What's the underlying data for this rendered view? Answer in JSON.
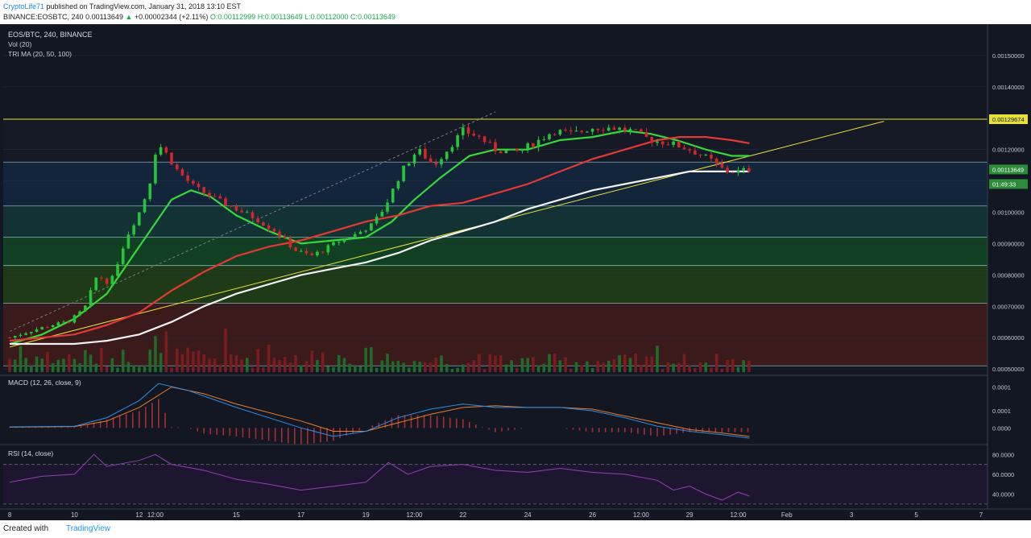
{
  "header": {
    "author": "CryptoLife71",
    "published": "published on TradingView.com, January 31, 2018 13:10 EST",
    "symbol": "BINANCE:EOSBTC, 240",
    "price": "0.00113649",
    "change": "+0.00002344 (+2.11%)",
    "ohlc": "O:0.00112999 H:0.00113649 L:0.00112000 C:0.00113649"
  },
  "legend": {
    "main": "EOS/BTC, 240, BINANCE",
    "vol": "Vol (20)",
    "trima": "TRI MA (20, 50, 100)"
  },
  "colors": {
    "background": "#131722",
    "grid": "#1f2433",
    "up": "#26c53a",
    "down": "#d5262c",
    "ma_fast": "#34d93a",
    "ma_mid": "#e53935",
    "ma_slow": "#f2f2f2",
    "trendline": "#e8e03a",
    "hline": "#e8e03a",
    "zone_line": "#9fd7d9",
    "macd": "#2b8ce8",
    "signal": "#f07b2a",
    "rsi": "#8e44ad"
  },
  "price_axis": {
    "labels": [
      "0.00150000",
      "0.00140000",
      "0.00129674",
      "0.00120000",
      "0.00113649",
      "01:49:33",
      "0.00100000",
      "0.00090000",
      "0.00080000",
      "0.00070000",
      "0.00060000",
      "0.00050000"
    ]
  },
  "time_axis": {
    "labels": [
      "8",
      "10",
      "12",
      "12:00",
      "15",
      "17",
      "19",
      "12:00",
      "22",
      "24",
      "26",
      "12:00",
      "29",
      "12:00",
      "Feb",
      "3",
      "5",
      "7"
    ]
  },
  "macd": {
    "title": "MACD (12, 26, close, 9)",
    "axis": [
      "0.0001",
      "0.0001",
      "0.0000"
    ]
  },
  "rsi": {
    "title": "RSI (14, close)",
    "axis": [
      "80.0000",
      "60.0000",
      "40.0000"
    ]
  },
  "footer": {
    "created": "Created with",
    "brand": "TradingView"
  },
  "chart_data": {
    "type": "candlestick",
    "title": "EOS/BTC, 240, BINANCE",
    "ylim": [
      0.00049,
      0.0016
    ],
    "horizontal_lines": [
      0.00129674
    ],
    "zone_levels": [
      0.00129674,
      0.00116,
      0.00102,
      0.00092,
      0.00083,
      0.00071,
      0.00051
    ],
    "last_price": 0.00113649,
    "price_series": [
      [
        8,
        0.0006
      ],
      [
        8.6,
        0.00062
      ],
      [
        9.3,
        0.00064
      ],
      [
        9.8,
        0.00065
      ],
      [
        10.3,
        0.00069
      ],
      [
        10.7,
        0.0008
      ],
      [
        11.1,
        0.00077
      ],
      [
        11.6,
        0.00092
      ],
      [
        12.0,
        0.001
      ],
      [
        12.3,
        0.00108
      ],
      [
        12.55,
        0.00122
      ],
      [
        12.75,
        0.0012
      ],
      [
        13.2,
        0.00113
      ],
      [
        13.7,
        0.00108
      ],
      [
        14.4,
        0.00104
      ],
      [
        15.0,
        0.00101
      ],
      [
        15.6,
        0.00098
      ],
      [
        16.2,
        0.00094
      ],
      [
        16.8,
        0.00088
      ],
      [
        17.3,
        0.00086
      ],
      [
        17.7,
        0.00088
      ],
      [
        18.2,
        0.00091
      ],
      [
        18.7,
        0.00093
      ],
      [
        19.2,
        0.00096
      ],
      [
        19.6,
        0.00102
      ],
      [
        20.1,
        0.00113
      ],
      [
        20.6,
        0.0012
      ],
      [
        21.1,
        0.00115
      ],
      [
        21.6,
        0.00121
      ],
      [
        22.0,
        0.00126
      ],
      [
        22.5,
        0.00124
      ],
      [
        23.0,
        0.0012
      ],
      [
        23.6,
        0.00119
      ],
      [
        24.2,
        0.00122
      ],
      [
        24.8,
        0.00126
      ],
      [
        25.4,
        0.00125
      ],
      [
        26.0,
        0.00127
      ],
      [
        26.6,
        0.00127
      ],
      [
        27.2,
        0.00126
      ],
      [
        27.8,
        0.00123
      ],
      [
        28.4,
        0.00122
      ],
      [
        29.0,
        0.0012
      ],
      [
        29.6,
        0.00117
      ],
      [
        30.1,
        0.00113
      ],
      [
        30.5,
        0.00113
      ],
      [
        30.85,
        0.00113649
      ]
    ],
    "series": [
      {
        "name": "TRI MA 20",
        "values": [
          [
            8,
            0.00058
          ],
          [
            9,
            0.00061
          ],
          [
            10,
            0.00066
          ],
          [
            11,
            0.00074
          ],
          [
            12,
            0.00089
          ],
          [
            13,
            0.00104
          ],
          [
            13.6,
            0.00107
          ],
          [
            14.2,
            0.00105
          ],
          [
            15,
            0.00099
          ],
          [
            16,
            0.00094
          ],
          [
            17,
            0.0009
          ],
          [
            18,
            0.00091
          ],
          [
            19,
            0.00092
          ],
          [
            19.8,
            0.00097
          ],
          [
            20.5,
            0.00104
          ],
          [
            21.3,
            0.00111
          ],
          [
            22.2,
            0.00118
          ],
          [
            23,
            0.0012
          ],
          [
            24,
            0.0012
          ],
          [
            25,
            0.00123
          ],
          [
            26,
            0.00124
          ],
          [
            27,
            0.00126
          ],
          [
            27.8,
            0.00125
          ],
          [
            28.6,
            0.00123
          ],
          [
            29.5,
            0.0012
          ],
          [
            30.3,
            0.00118
          ],
          [
            30.85,
            0.00118
          ]
        ]
      },
      {
        "name": "TRI MA 50",
        "values": [
          [
            8,
            0.00059
          ],
          [
            9,
            0.0006
          ],
          [
            10,
            0.00061
          ],
          [
            11,
            0.00064
          ],
          [
            12,
            0.00068
          ],
          [
            13,
            0.00075
          ],
          [
            14,
            0.00081
          ],
          [
            15,
            0.00086
          ],
          [
            16,
            0.00089
          ],
          [
            17,
            0.00091
          ],
          [
            18,
            0.00094
          ],
          [
            19,
            0.00097
          ],
          [
            20,
            0.00099
          ],
          [
            21,
            0.00102
          ],
          [
            22,
            0.00103
          ],
          [
            23,
            0.00106
          ],
          [
            24,
            0.00109
          ],
          [
            25,
            0.00113
          ],
          [
            26,
            0.00117
          ],
          [
            27,
            0.0012
          ],
          [
            28,
            0.00123
          ],
          [
            28.7,
            0.00124
          ],
          [
            29.5,
            0.00124
          ],
          [
            30.3,
            0.00123
          ],
          [
            30.85,
            0.00122
          ]
        ]
      },
      {
        "name": "TRI MA 100",
        "values": [
          [
            8,
            0.00058
          ],
          [
            9,
            0.00058
          ],
          [
            10,
            0.00058
          ],
          [
            11,
            0.00059
          ],
          [
            12,
            0.00061
          ],
          [
            13,
            0.00065
          ],
          [
            14,
            0.0007
          ],
          [
            15,
            0.00074
          ],
          [
            16,
            0.00077
          ],
          [
            17,
            0.0008
          ],
          [
            18,
            0.00082
          ],
          [
            19,
            0.00084
          ],
          [
            20,
            0.00087
          ],
          [
            21,
            0.00091
          ],
          [
            22,
            0.00094
          ],
          [
            23,
            0.00097
          ],
          [
            24,
            0.00101
          ],
          [
            25,
            0.00104
          ],
          [
            26,
            0.00107
          ],
          [
            27,
            0.00109
          ],
          [
            28,
            0.00111
          ],
          [
            29,
            0.00113
          ],
          [
            29.8,
            0.00113
          ],
          [
            30.85,
            0.00113
          ]
        ]
      }
    ],
    "trendlines": [
      {
        "from": [
          8,
          0.00057
        ],
        "to": [
          35.0,
          0.00129
        ]
      },
      {
        "from": [
          8,
          0.00062
        ],
        "to": [
          23.0,
          0.00132
        ],
        "style": "dashed"
      }
    ],
    "macd": {
      "macd_line": [
        [
          8,
          3e-06
        ],
        [
          10,
          5e-06
        ],
        [
          11,
          3e-05
        ],
        [
          12,
          8e-05
        ],
        [
          12.6,
          0.00013
        ],
        [
          13.5,
          0.00011
        ],
        [
          15,
          6e-05
        ],
        [
          17,
          0.0
        ],
        [
          18,
          -2.5e-05
        ],
        [
          19,
          -1e-05
        ],
        [
          20,
          3e-05
        ],
        [
          21,
          5.5e-05
        ],
        [
          22,
          7e-05
        ],
        [
          23,
          6e-05
        ],
        [
          24,
          6e-05
        ],
        [
          25,
          6e-05
        ],
        [
          26,
          5e-05
        ],
        [
          27,
          3e-05
        ],
        [
          28,
          5e-06
        ],
        [
          29,
          -1e-05
        ],
        [
          30,
          -2e-05
        ],
        [
          30.85,
          -3e-05
        ]
      ],
      "signal_line": [
        [
          8,
          2e-06
        ],
        [
          10,
          4e-06
        ],
        [
          11,
          2e-05
        ],
        [
          12,
          6e-05
        ],
        [
          13,
          0.00012
        ],
        [
          14,
          0.0001
        ],
        [
          15,
          7e-05
        ],
        [
          17,
          2e-05
        ],
        [
          18,
          -1e-05
        ],
        [
          19,
          -1e-05
        ],
        [
          20,
          1.5e-05
        ],
        [
          21,
          4e-05
        ],
        [
          22,
          6e-05
        ],
        [
          23,
          6.5e-05
        ],
        [
          24,
          6e-05
        ],
        [
          25,
          6e-05
        ],
        [
          26,
          5.5e-05
        ],
        [
          27,
          3.5e-05
        ],
        [
          28,
          1.5e-05
        ],
        [
          29,
          -5e-06
        ],
        [
          30,
          -1.5e-05
        ],
        [
          30.85,
          -2.5e-05
        ]
      ],
      "ylim": [
        -3e-05,
        0.00014
      ]
    },
    "rsi": {
      "values": [
        [
          8,
          52
        ],
        [
          9,
          58
        ],
        [
          10,
          60
        ],
        [
          10.6,
          80
        ],
        [
          11,
          68
        ],
        [
          12,
          74
        ],
        [
          12.5,
          80
        ],
        [
          13,
          70
        ],
        [
          14,
          64
        ],
        [
          15,
          55
        ],
        [
          16,
          50
        ],
        [
          17,
          44
        ],
        [
          18,
          48
        ],
        [
          19,
          52
        ],
        [
          19.7,
          72
        ],
        [
          20.3,
          60
        ],
        [
          21,
          68
        ],
        [
          22,
          70
        ],
        [
          23,
          64
        ],
        [
          24,
          62
        ],
        [
          25,
          66
        ],
        [
          26,
          62
        ],
        [
          27,
          60
        ],
        [
          28,
          54
        ],
        [
          28.5,
          44
        ],
        [
          29,
          48
        ],
        [
          29.5,
          40
        ],
        [
          30,
          34
        ],
        [
          30.5,
          42
        ],
        [
          30.85,
          38
        ]
      ],
      "ylim": [
        25,
        90
      ],
      "bands": [
        70,
        30
      ]
    }
  }
}
